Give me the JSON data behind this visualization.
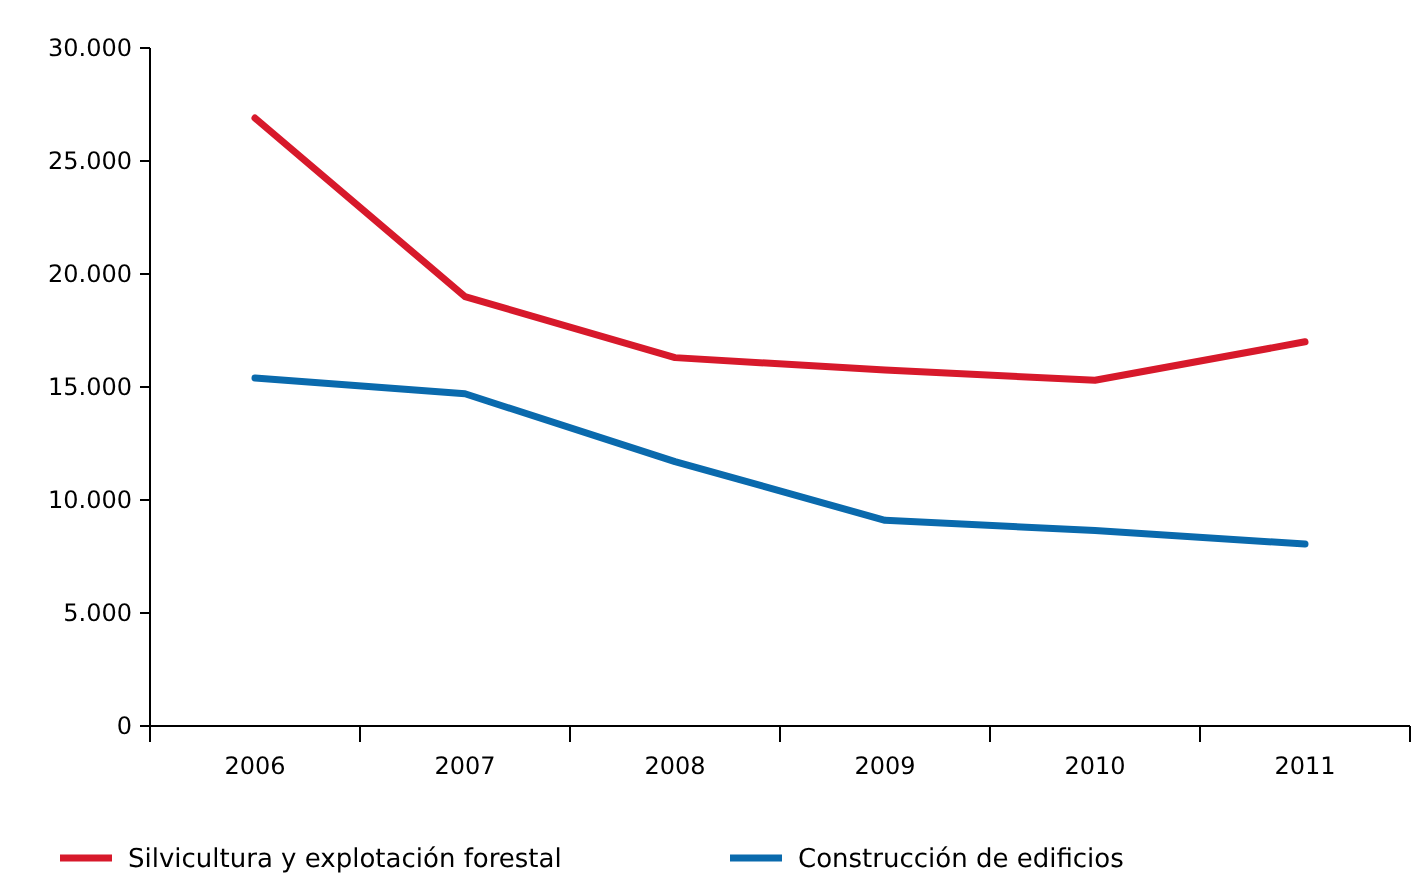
{
  "chart_data": {
    "type": "line",
    "categories": [
      "2006",
      "2007",
      "2008",
      "2009",
      "2010",
      "2011"
    ],
    "series": [
      {
        "name": "Silvicultura y explotación forestal",
        "color": "#d7192b",
        "values": [
          26900,
          19000,
          16300,
          15750,
          15300,
          17000
        ]
      },
      {
        "name": "Construcción de edificios",
        "color": "#0a6aad",
        "values": [
          15400,
          14700,
          11700,
          9100,
          8650,
          8050
        ]
      }
    ],
    "ylim": [
      0,
      30000
    ],
    "yticks": [
      0,
      {
        "value": 5000,
        "label": "5.000"
      },
      {
        "value": 10000,
        "label": "10.000"
      },
      {
        "value": 15000,
        "label": "15.000"
      },
      {
        "value": 20000,
        "label": "20.000"
      },
      {
        "value": 25000,
        "label": "25.000"
      },
      {
        "value": 30000,
        "label": "30.000"
      }
    ],
    "grid": false,
    "legend": "bottom",
    "marker": "none",
    "line_style": "solid"
  }
}
